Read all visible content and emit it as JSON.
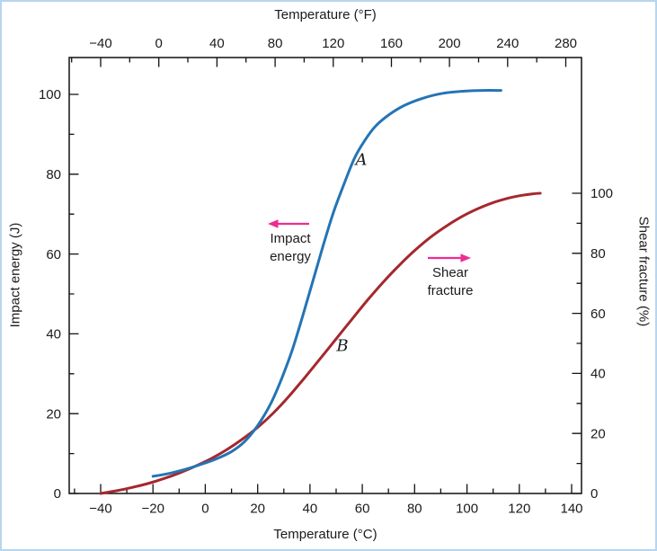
{
  "page": {
    "background": "#ffffff",
    "border_color": "#b5d6ee"
  },
  "chart_data": {
    "type": "line",
    "title": "",
    "legend": "none",
    "grid": false,
    "axes": {
      "top": {
        "label": "Temperature (°F)",
        "unit": "°F",
        "tick_values": [
          -40,
          0,
          40,
          80,
          120,
          160,
          200,
          240,
          280
        ],
        "tick_labels": [
          "−40",
          "0",
          "40",
          "80",
          "120",
          "160",
          "200",
          "240",
          "280"
        ],
        "minor_tick_values": [
          -60,
          -20,
          20,
          60,
          100,
          140,
          180,
          220,
          260
        ]
      },
      "bottom": {
        "label": "Temperature (°C)",
        "unit": "°C",
        "range": [
          -52,
          144
        ],
        "tick_values": [
          -40,
          -20,
          0,
          20,
          40,
          60,
          80,
          100,
          120,
          140
        ],
        "tick_labels": [
          "−40",
          "−20",
          "0",
          "20",
          "40",
          "60",
          "80",
          "100",
          "120",
          "140"
        ],
        "minor_tick_values": [
          -50,
          -30,
          -10,
          10,
          30,
          50,
          70,
          90,
          110,
          130
        ]
      },
      "left": {
        "label": "Impact energy (J)",
        "unit": "J",
        "range": [
          0,
          109
        ],
        "tick_values": [
          0,
          20,
          40,
          60,
          80,
          100
        ],
        "tick_labels": [
          "0",
          "20",
          "40",
          "60",
          "80",
          "100"
        ],
        "minor_tick_values": [
          10,
          30,
          50,
          70,
          90
        ]
      },
      "right": {
        "label": "Shear fracture (%)",
        "unit": "%",
        "range": [
          0,
          145
        ],
        "tick_values": [
          0,
          20,
          40,
          60,
          80,
          100
        ],
        "tick_labels": [
          "0",
          "20",
          "40",
          "60",
          "80",
          "100"
        ],
        "minor_tick_values": [
          10,
          30,
          50,
          70,
          90
        ]
      }
    },
    "series": [
      {
        "name": "A",
        "label": "A",
        "axis": "left",
        "color": "#2474b5",
        "points": [
          [
            -20,
            4.3
          ],
          [
            -14,
            5
          ],
          [
            -8,
            6
          ],
          [
            -2,
            7.2
          ],
          [
            4,
            8.6
          ],
          [
            10,
            10.5
          ],
          [
            15,
            13
          ],
          [
            20,
            17
          ],
          [
            25,
            22.5
          ],
          [
            29,
            28.5
          ],
          [
            33,
            35.5
          ],
          [
            37,
            44
          ],
          [
            41,
            53
          ],
          [
            45,
            62
          ],
          [
            49,
            70.5
          ],
          [
            53,
            77.5
          ],
          [
            57,
            84
          ],
          [
            61,
            88.5
          ],
          [
            65,
            92
          ],
          [
            70,
            94.8
          ],
          [
            76,
            97.2
          ],
          [
            83,
            99
          ],
          [
            91,
            100.3
          ],
          [
            99,
            100.8
          ],
          [
            106,
            101
          ],
          [
            113,
            101
          ]
        ]
      },
      {
        "name": "B",
        "label": "B",
        "axis": "right",
        "color": "#a5282d",
        "points": [
          [
            -40,
            0
          ],
          [
            -34,
            0.9
          ],
          [
            -28,
            2
          ],
          [
            -22,
            3.3
          ],
          [
            -16,
            4.9
          ],
          [
            -10,
            6.8
          ],
          [
            -4,
            9
          ],
          [
            2,
            11.5
          ],
          [
            8,
            14.5
          ],
          [
            14,
            18
          ],
          [
            20,
            22
          ],
          [
            26,
            26.8
          ],
          [
            32,
            32.4
          ],
          [
            38,
            38.6
          ],
          [
            44,
            45
          ],
          [
            50,
            51.5
          ],
          [
            56,
            58
          ],
          [
            62,
            64.4
          ],
          [
            68,
            70.4
          ],
          [
            74,
            75.9
          ],
          [
            80,
            80.9
          ],
          [
            86,
            85.3
          ],
          [
            92,
            89
          ],
          [
            98,
            92.2
          ],
          [
            104,
            94.8
          ],
          [
            110,
            96.9
          ],
          [
            116,
            98.4
          ],
          [
            121,
            99.3
          ],
          [
            125,
            99.8
          ],
          [
            128,
            100
          ]
        ]
      }
    ],
    "annotations": [
      {
        "id": "impact-energy",
        "line1": "Impact",
        "line2": "energy",
        "arrow": "left",
        "color": "#ed2d91"
      },
      {
        "id": "shear-fracture",
        "line1": "Shear",
        "line2": "fracture",
        "arrow": "right",
        "color": "#ed2d91"
      }
    ]
  }
}
